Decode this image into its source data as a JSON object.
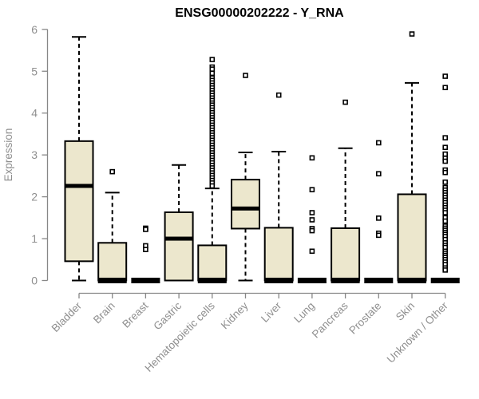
{
  "title": "ENSG00000202222 - Y_RNA",
  "colors": {
    "background": "#ffffff",
    "box_fill": "#ECE7CD",
    "box_stroke": "#000000",
    "median": "#000000",
    "whisker": "#000000",
    "outlier": "#000000",
    "axis_line": "#878787",
    "axis_text": "#8f8f8f",
    "title_text": "#000000"
  },
  "chart_data": {
    "type": "boxplot",
    "title": "ENSG00000202222 - Y_RNA",
    "xlabel": "",
    "ylabel": "Expression",
    "ylim": [
      0,
      6
    ],
    "yticks": [
      0,
      1,
      2,
      3,
      4,
      5,
      6
    ],
    "grid": false,
    "legend": false,
    "categories": [
      "Bladder",
      "Brain",
      "Breast",
      "Gastric",
      "Hematopoietic cells",
      "Kidney",
      "Liver",
      "Lung",
      "Pancreas",
      "Prostate",
      "Skin",
      "Unknown / Other"
    ],
    "series": [
      {
        "name": "Bladder",
        "whisker_low": 0,
        "q1": 0.46,
        "median": 2.26,
        "q3": 3.33,
        "whisker_high": 5.82,
        "outliers": []
      },
      {
        "name": "Brain",
        "whisker_low": 0,
        "q1": 0,
        "median": 0,
        "q3": 0.9,
        "whisker_high": 2.1,
        "outliers": [
          2.6
        ]
      },
      {
        "name": "Breast",
        "whisker_low": 0,
        "q1": 0,
        "median": 0,
        "q3": 0,
        "whisker_high": 0,
        "outliers": [
          1.25,
          1.22,
          0.83,
          0.74
        ]
      },
      {
        "name": "Gastric",
        "whisker_low": 0,
        "q1": 0,
        "median": 1.0,
        "q3": 1.63,
        "whisker_high": 2.76,
        "outliers": []
      },
      {
        "name": "Hematopoietic cells",
        "whisker_low": 0,
        "q1": 0,
        "median": 0,
        "q3": 0.84,
        "whisker_high": 2.2,
        "outliers": [
          5.28,
          5.1,
          5.05,
          4.95,
          4.84,
          4.78,
          4.72,
          4.66,
          4.6,
          4.54,
          4.48,
          4.42,
          4.36,
          4.3,
          4.24,
          4.19,
          4.13,
          4.07,
          4.01,
          3.95,
          3.89,
          3.83,
          3.77,
          3.71,
          3.65,
          3.59,
          3.53,
          3.47,
          3.41,
          3.35,
          3.29,
          3.23,
          3.17,
          3.11,
          3.05,
          2.99,
          2.93,
          2.87,
          2.81,
          2.75,
          2.69,
          2.63,
          2.57,
          2.51,
          2.45,
          2.39,
          2.33,
          2.26
        ]
      },
      {
        "name": "Kidney",
        "whisker_low": 0,
        "q1": 1.24,
        "median": 1.72,
        "q3": 2.41,
        "whisker_high": 3.06,
        "outliers": [
          4.9
        ]
      },
      {
        "name": "Liver",
        "whisker_low": 0,
        "q1": 0,
        "median": 0,
        "q3": 1.26,
        "whisker_high": 3.08,
        "outliers": [
          4.43
        ]
      },
      {
        "name": "Lung",
        "whisker_low": 0,
        "q1": 0,
        "median": 0,
        "q3": 0,
        "whisker_high": 0,
        "outliers": [
          2.93,
          2.17,
          1.62,
          1.45,
          1.24,
          1.19,
          0.7
        ]
      },
      {
        "name": "Pancreas",
        "whisker_low": 0,
        "q1": 0,
        "median": 0,
        "q3": 1.25,
        "whisker_high": 3.16,
        "outliers": [
          4.26
        ]
      },
      {
        "name": "Prostate",
        "whisker_low": 0,
        "q1": 0,
        "median": 0,
        "q3": 0,
        "whisker_high": 0,
        "outliers": [
          3.29,
          2.55,
          1.49,
          1.13,
          1.08
        ]
      },
      {
        "name": "Skin",
        "whisker_low": 0,
        "q1": 0,
        "median": 0,
        "q3": 2.06,
        "whisker_high": 4.72,
        "outliers": [
          5.89
        ]
      },
      {
        "name": "Unknown / Other",
        "whisker_low": 0,
        "q1": 0,
        "median": 0,
        "q3": 0,
        "whisker_high": 0,
        "outliers": [
          4.88,
          4.61,
          3.41,
          3.18,
          3.02,
          2.92,
          2.85,
          2.64,
          2.58,
          2.35,
          2.22,
          2.16,
          2.1,
          2.04,
          1.98,
          1.92,
          1.86,
          1.8,
          1.74,
          1.68,
          1.62,
          1.5,
          1.42,
          1.3,
          1.25,
          1.2,
          1.15,
          1.1,
          1.05,
          0.98,
          0.9,
          0.84,
          0.79,
          0.7,
          0.65,
          0.6,
          0.55,
          0.5,
          0.44,
          0.38,
          0.3,
          0.25
        ]
      }
    ]
  }
}
